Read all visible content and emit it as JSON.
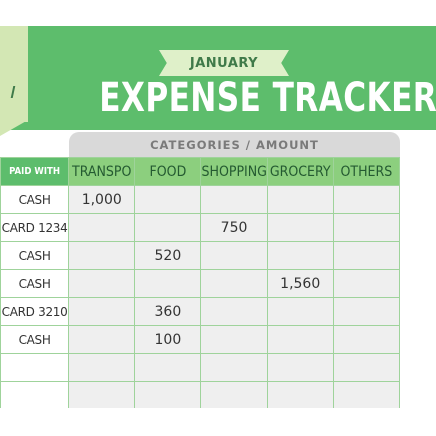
{
  "header": {
    "month": "JANUARY",
    "title": "EXPENSE TRACKER",
    "categories_label": "CATEGORIES / AMOUNT"
  },
  "table": {
    "paid_with_header": "PAID WITH",
    "columns": [
      "TRANSPO",
      "FOOD",
      "SHOPPING",
      "GROCERY",
      "OTHERS"
    ],
    "rows": [
      {
        "paid": "CASH",
        "cells": [
          "1,000",
          "",
          "",
          "",
          ""
        ]
      },
      {
        "paid": "CARD 1234",
        "cells": [
          "",
          "",
          "750",
          "",
          ""
        ]
      },
      {
        "paid": "CASH",
        "cells": [
          "",
          "520",
          "",
          "",
          ""
        ]
      },
      {
        "paid": "CASH",
        "cells": [
          "",
          "",
          "",
          "1,560",
          ""
        ]
      },
      {
        "paid": "CARD 3210",
        "cells": [
          "",
          "360",
          "",
          "",
          ""
        ]
      },
      {
        "paid": "CASH",
        "cells": [
          "",
          "100",
          "",
          "",
          ""
        ]
      },
      {
        "paid": "",
        "cells": [
          "",
          "",
          "",
          "",
          ""
        ]
      },
      {
        "paid": "",
        "cells": [
          "",
          "",
          "",
          "",
          ""
        ]
      }
    ]
  },
  "colors": {
    "banner": "#5dbd6c",
    "header_row": "#8ccf7e",
    "light_tab": "#d3e7b4",
    "ribbon": "#dff0c9",
    "cell_bg": "#efefef",
    "grid_line": "#9fd39b"
  }
}
